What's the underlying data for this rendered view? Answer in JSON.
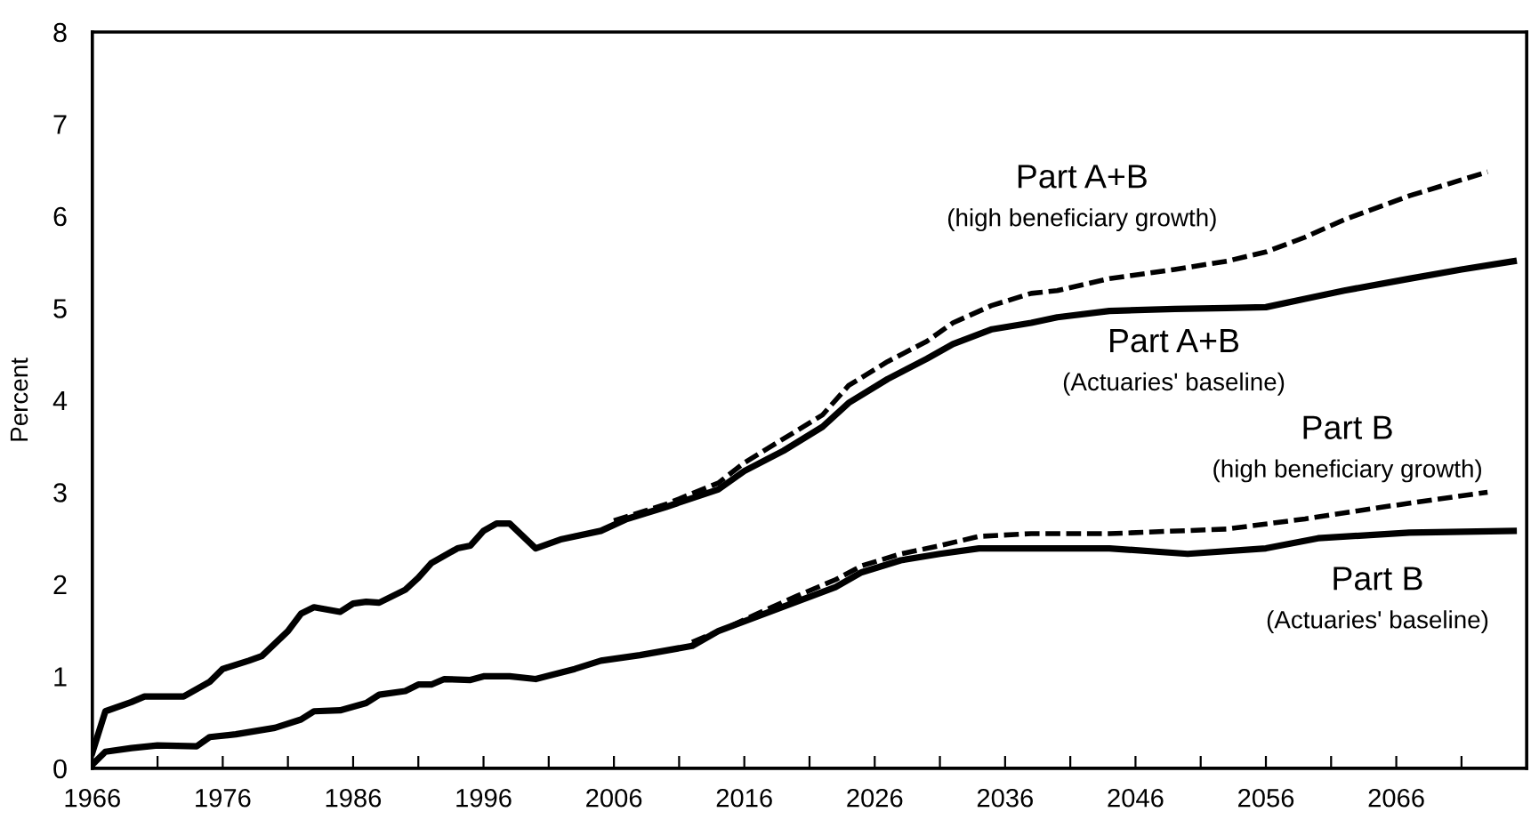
{
  "chart_data": {
    "type": "line",
    "ylabel": "Percent",
    "xlim": [
      1966,
      2076
    ],
    "ylim": [
      0,
      8
    ],
    "xticks": [
      1966,
      {
        "value": 1971,
        "label": null
      },
      1976,
      {
        "value": 1981,
        "label": null
      },
      1986,
      {
        "value": 1991,
        "label": null
      },
      1996,
      {
        "value": 2001,
        "label": null
      },
      2006,
      {
        "value": 2011,
        "label": null
      },
      2016,
      {
        "value": 2021,
        "label": null
      },
      2026,
      {
        "value": 2031,
        "label": null
      },
      2036,
      {
        "value": 2041,
        "label": null
      },
      2046,
      {
        "value": 2051,
        "label": null
      },
      2056,
      {
        "value": 2061,
        "label": null
      },
      2066,
      {
        "value": 2071,
        "label": null
      }
    ],
    "yticks": [
      0,
      1,
      2,
      3,
      4,
      5,
      6,
      7,
      8
    ],
    "grid": false,
    "legend": false,
    "series": [
      {
        "name": "Part A+B\n(high beneficiary growth)",
        "color": "#000000",
        "line_style": "dashed",
        "x": [
          2006,
          2010,
          2014,
          2016,
          2019,
          2022,
          2024,
          2027,
          2030,
          2032,
          2035,
          2038,
          2040,
          2044,
          2049,
          2053,
          2056,
          2059,
          2062,
          2067,
          2073
        ],
        "values": [
          2.69,
          2.87,
          3.1,
          3.32,
          3.58,
          3.84,
          4.16,
          4.42,
          4.64,
          4.84,
          5.03,
          5.16,
          5.19,
          5.32,
          5.42,
          5.51,
          5.61,
          5.77,
          5.96,
          6.22,
          6.48
        ]
      },
      {
        "name": "Part A+B\n(Actuaries' baseline)",
        "color": "#000000",
        "line_style": "solid",
        "x": [
          1966,
          1967,
          1969,
          1970,
          1973,
          1975,
          1976,
          1978,
          1979,
          1981,
          1982,
          1983,
          1985,
          1986,
          1987,
          1988,
          1990,
          1991,
          1992,
          1994,
          1995,
          1996,
          1997,
          1998,
          2000,
          2002,
          2005,
          2007,
          2010,
          2014,
          2016,
          2019,
          2022,
          2024,
          2027,
          2030,
          2032,
          2035,
          2038,
          2040,
          2044,
          2049,
          2053,
          2056,
          2059,
          2062,
          2067,
          2071,
          2075
        ],
        "values": [
          0.17,
          0.62,
          0.72,
          0.78,
          0.78,
          0.94,
          1.08,
          1.17,
          1.22,
          1.49,
          1.68,
          1.75,
          1.7,
          1.79,
          1.81,
          1.8,
          1.94,
          2.07,
          2.23,
          2.39,
          2.42,
          2.58,
          2.66,
          2.66,
          2.39,
          2.49,
          2.58,
          2.71,
          2.84,
          3.03,
          3.23,
          3.45,
          3.71,
          3.97,
          4.23,
          4.45,
          4.61,
          4.77,
          4.84,
          4.9,
          4.97,
          4.99,
          5.0,
          5.01,
          5.1,
          5.19,
          5.32,
          5.42,
          5.51
        ]
      },
      {
        "name": "Part B\n(high beneficiary growth)",
        "color": "#000000",
        "line_style": "dashed",
        "x": [
          2012,
          2015,
          2017,
          2020,
          2023,
          2025,
          2028,
          2031,
          2034,
          2038,
          2044,
          2053,
          2059,
          2065,
          2073
        ],
        "values": [
          1.37,
          1.55,
          1.68,
          1.87,
          2.05,
          2.2,
          2.33,
          2.42,
          2.52,
          2.55,
          2.55,
          2.6,
          2.71,
          2.84,
          3.0
        ]
      },
      {
        "name": "Part B\n(Actuaries' baseline)",
        "color": "#000000",
        "line_style": "solid",
        "x": [
          1966,
          1967,
          1969,
          1971,
          1974,
          1975,
          1977,
          1980,
          1982,
          1983,
          1985,
          1987,
          1988,
          1990,
          1991,
          1992,
          1993,
          1995,
          1996,
          1998,
          2000,
          2003,
          2005,
          2008,
          2012,
          2014,
          2017,
          2020,
          2023,
          2025,
          2028,
          2031,
          2034,
          2038,
          2044,
          2050,
          2056,
          2060,
          2067,
          2075
        ],
        "values": [
          0.04,
          0.18,
          0.22,
          0.25,
          0.24,
          0.34,
          0.37,
          0.44,
          0.53,
          0.62,
          0.63,
          0.71,
          0.8,
          0.84,
          0.91,
          0.91,
          0.97,
          0.96,
          1.0,
          1.0,
          0.97,
          1.08,
          1.17,
          1.23,
          1.33,
          1.49,
          1.65,
          1.81,
          1.97,
          2.13,
          2.26,
          2.33,
          2.39,
          2.39,
          2.39,
          2.33,
          2.39,
          2.5,
          2.56,
          2.58
        ]
      }
    ]
  }
}
